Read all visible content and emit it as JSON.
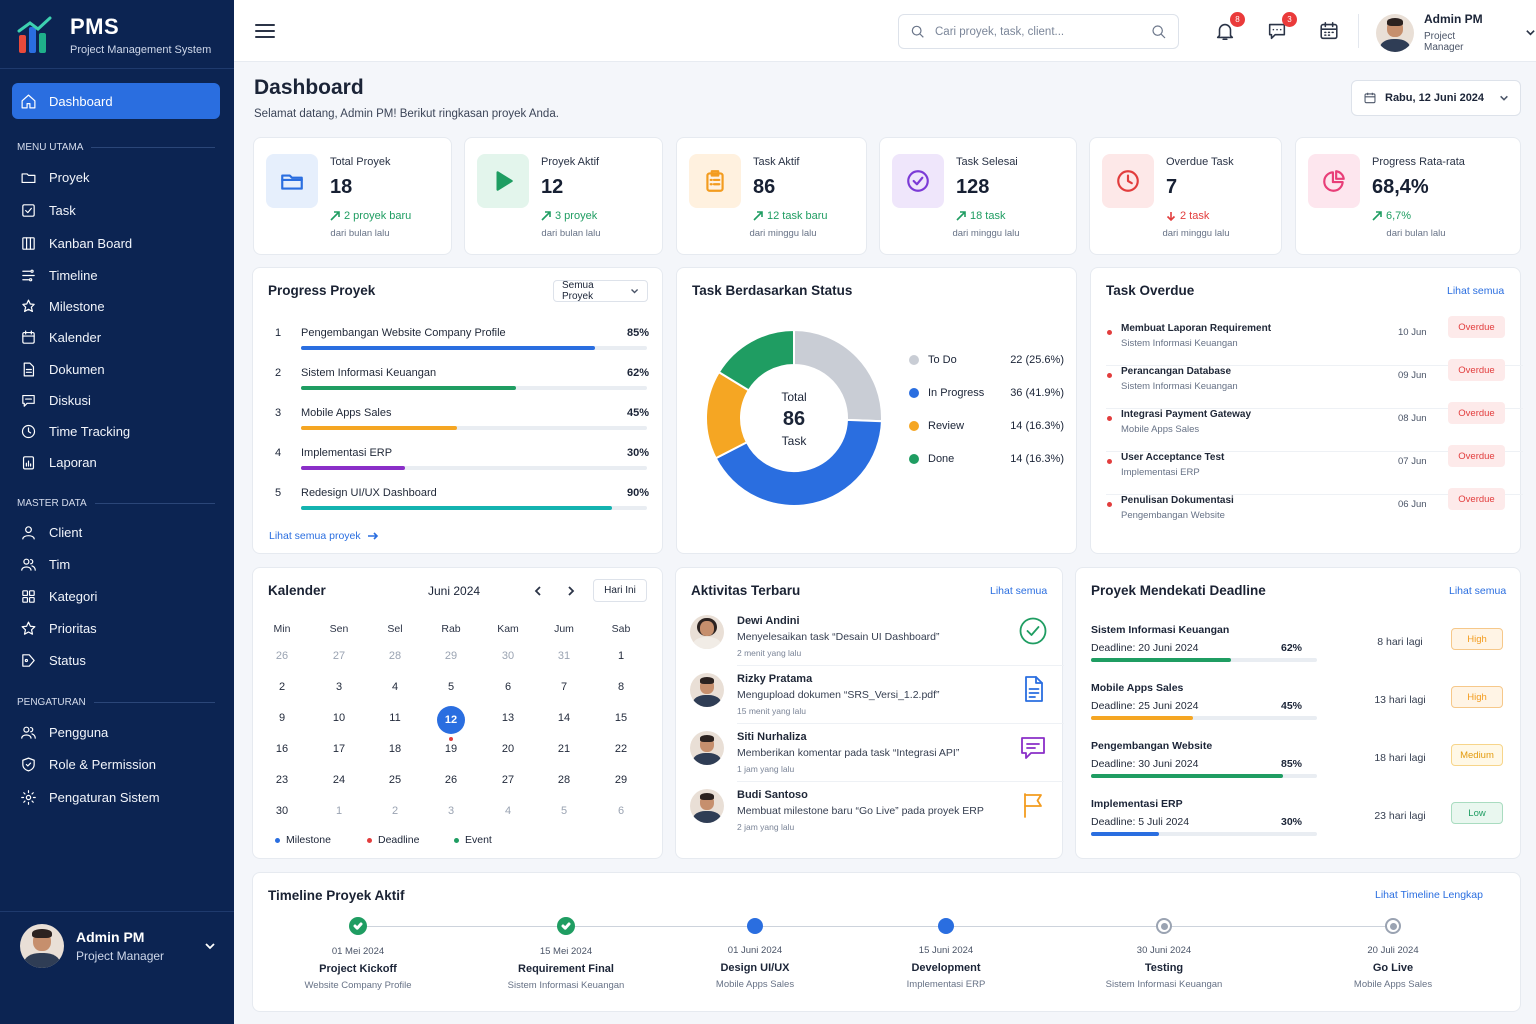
{
  "brand": {
    "title": "PMS",
    "subtitle": "Project Management System"
  },
  "nav": {
    "active": "Dashboard",
    "sections": [
      {
        "label": "MENU UTAMA",
        "items": [
          "Proyek",
          "Task",
          "Kanban Board",
          "Timeline",
          "Milestone",
          "Kalender",
          "Dokumen",
          "Diskusi",
          "Time Tracking",
          "Laporan"
        ]
      },
      {
        "label": "MASTER DATA",
        "items": [
          "Client",
          "Tim",
          "Kategori",
          "Prioritas",
          "Status"
        ]
      },
      {
        "label": "PENGATURAN",
        "items": [
          "Pengguna",
          "Role & Permission",
          "Pengaturan Sistem"
        ]
      }
    ]
  },
  "user": {
    "name": "Admin PM",
    "role": "Project Manager"
  },
  "topbar": {
    "search_placeholder": "Cari proyek, task, client...",
    "notif_count": "8",
    "msg_count": "3"
  },
  "page": {
    "title": "Dashboard",
    "subtitle": "Selamat datang, Admin PM! Berikut ringkasan proyek Anda.",
    "date": "Rabu, 12 Juni 2024"
  },
  "stats": [
    {
      "label": "Total Proyek",
      "value": "18",
      "trend": "2 proyek baru",
      "period": "dari bulan lalu",
      "dir": "up",
      "icon": "folder-icon",
      "color": "#2a6ee0",
      "bg": "#e6effc"
    },
    {
      "label": "Proyek Aktif",
      "value": "12",
      "trend": "3 proyek",
      "period": "dari bulan lalu",
      "dir": "up",
      "icon": "play-icon",
      "color": "#1f9d62",
      "bg": "#e3f5ec"
    },
    {
      "label": "Task Aktif",
      "value": "86",
      "trend": "12 task baru",
      "period": "dari minggu lalu",
      "dir": "up",
      "icon": "clipboard-icon",
      "color": "#f39c1f",
      "bg": "#fff1df"
    },
    {
      "label": "Task Selesai",
      "value": "128",
      "trend": "18 task",
      "period": "dari minggu lalu",
      "dir": "up",
      "icon": "check-circle-icon",
      "color": "#7c3bd6",
      "bg": "#efe6fb"
    },
    {
      "label": "Overdue Task",
      "value": "7",
      "trend": "2 task",
      "period": "dari minggu lalu",
      "dir": "down",
      "icon": "clock-icon",
      "color": "#e23d3d",
      "bg": "#fde8e8"
    },
    {
      "label": "Progress Rata-rata",
      "value": "68,4%",
      "trend": "6,7%",
      "period": "dari bulan lalu",
      "dir": "up",
      "icon": "pie-chart-icon",
      "color": "#e83e78",
      "bg": "#fde6ee"
    }
  ],
  "progress": {
    "title": "Progress Proyek",
    "filter": "Semua Proyek",
    "link": "Lihat semua proyek",
    "items": [
      {
        "num": "1",
        "name": "Pengembangan Website Company Profile",
        "pct": 85,
        "pct_label": "85%",
        "color": "#2a6ee0"
      },
      {
        "num": "2",
        "name": "Sistem Informasi Keuangan",
        "pct": 62,
        "pct_label": "62%",
        "color": "#1f9d62"
      },
      {
        "num": "3",
        "name": "Mobile Apps Sales",
        "pct": 45,
        "pct_label": "45%",
        "color": "#f5a623"
      },
      {
        "num": "4",
        "name": "Implementasi ERP",
        "pct": 30,
        "pct_label": "30%",
        "color": "#8a2ec8"
      },
      {
        "num": "5",
        "name": "Redesign UI/UX Dashboard",
        "pct": 90,
        "pct_label": "90%",
        "color": "#14b3b0"
      }
    ]
  },
  "status": {
    "title": "Task Berdasarkan Status",
    "center_top": "Total",
    "center_value": "86",
    "center_bottom": "Task",
    "chart_data": {
      "type": "pie",
      "categories": [
        "To Do",
        "In Progress",
        "Review",
        "Done"
      ],
      "values": [
        22,
        36,
        14,
        14
      ],
      "labels": [
        "22 (25.6%)",
        "36 (41.9%)",
        "14 (16.3%)",
        "14 (16.3%)"
      ],
      "colors": [
        "#c9cdd5",
        "#2a6ee0",
        "#f5a623",
        "#1f9d62"
      ]
    }
  },
  "overdue": {
    "title": "Task Overdue",
    "link": "Lihat semua",
    "items": [
      {
        "title": "Membuat Laporan Requirement",
        "project": "Sistem Informasi Keuangan",
        "date": "10 Jun",
        "badge": "Overdue"
      },
      {
        "title": "Perancangan Database",
        "project": "Sistem Informasi Keuangan",
        "date": "09 Jun",
        "badge": "Overdue"
      },
      {
        "title": "Integrasi Payment Gateway",
        "project": "Mobile Apps Sales",
        "date": "08 Jun",
        "badge": "Overdue"
      },
      {
        "title": "User Acceptance Test",
        "project": "Implementasi ERP",
        "date": "07 Jun",
        "badge": "Overdue"
      },
      {
        "title": "Penulisan Dokumentasi",
        "project": "Pengembangan Website",
        "date": "06 Jun",
        "badge": "Overdue"
      }
    ]
  },
  "calendar": {
    "title": "Kalender",
    "month": "Juni 2024",
    "today_btn": "Hari Ini",
    "weekdays": [
      "Min",
      "Sen",
      "Sel",
      "Rab",
      "Kam",
      "Jum",
      "Sab"
    ],
    "weeks": [
      [
        "26",
        "27",
        "28",
        "29",
        "30",
        "31",
        "1"
      ],
      [
        "2",
        "3",
        "4",
        "5",
        "6",
        "7",
        "8"
      ],
      [
        "9",
        "10",
        "11",
        "12",
        "13",
        "14",
        "15"
      ],
      [
        "16",
        "17",
        "18",
        "19",
        "20",
        "21",
        "22"
      ],
      [
        "23",
        "24",
        "25",
        "26",
        "27",
        "28",
        "29"
      ],
      [
        "30",
        "1",
        "2",
        "3",
        "4",
        "5",
        "6"
      ]
    ],
    "legend": [
      {
        "label": "Milestone",
        "color": "#2a6ee0"
      },
      {
        "label": "Deadline",
        "color": "#e23d3d"
      },
      {
        "label": "Event",
        "color": "#1f9d62"
      }
    ]
  },
  "activity": {
    "title": "Aktivitas Terbaru",
    "link": "Lihat semua",
    "items": [
      {
        "name": "Dewi Andini",
        "text": "Menyelesaikan task “Desain UI Dashboard”",
        "time": "2 menit yang lalu",
        "icon": "check-circle-icon",
        "color": "#1f9d62"
      },
      {
        "name": "Rizky Pratama",
        "text": "Mengupload dokumen “SRS_Versi_1.2.pdf”",
        "time": "15 menit yang lalu",
        "icon": "document-icon",
        "color": "#2a6ee0"
      },
      {
        "name": "Siti Nurhaliza",
        "text": "Memberikan komentar pada task “Integrasi API”",
        "time": "1 jam yang lalu",
        "icon": "comment-icon",
        "color": "#8a2ec8"
      },
      {
        "name": "Budi Santoso",
        "text": "Membuat milestone baru “Go Live” pada proyek ERP",
        "time": "2 jam yang lalu",
        "icon": "flag-icon",
        "color": "#f39c1f"
      }
    ]
  },
  "deadline": {
    "title": "Proyek Mendekati Deadline",
    "link": "Lihat semua",
    "items": [
      {
        "name": "Sistem Informasi Keuangan",
        "deadline": "Deadline: 20 Juni 2024",
        "pct": 62,
        "pct_label": "62%",
        "left": "8 hari lagi",
        "priority": "High",
        "color": "#1f9d62"
      },
      {
        "name": "Mobile Apps Sales",
        "deadline": "Deadline: 25 Juni 2024",
        "pct": 45,
        "pct_label": "45%",
        "left": "13 hari lagi",
        "priority": "High",
        "color": "#f5a623"
      },
      {
        "name": "Pengembangan Website",
        "deadline": "Deadline: 30 Juni 2024",
        "pct": 85,
        "pct_label": "85%",
        "left": "18 hari lagi",
        "priority": "Medium",
        "color": "#1f9d62"
      },
      {
        "name": "Implementasi ERP",
        "deadline": "Deadline: 5 Juli 2024",
        "pct": 30,
        "pct_label": "30%",
        "left": "23 hari lagi",
        "priority": "Low",
        "color": "#2a6ee0"
      }
    ]
  },
  "timeline": {
    "title": "Timeline Proyek Aktif",
    "link": "Lihat Timeline Lengkap",
    "steps": [
      {
        "date": "01 Mei 2024",
        "title": "Project Kickoff",
        "project": "Website Company Profile",
        "state": "done"
      },
      {
        "date": "15 Mei 2024",
        "title": "Requirement Final",
        "project": "Sistem Informasi Keuangan",
        "state": "done"
      },
      {
        "date": "01 Juni 2024",
        "title": "Design UI/UX",
        "project": "Mobile Apps Sales",
        "state": "progress"
      },
      {
        "date": "15 Juni 2024",
        "title": "Development",
        "project": "Implementasi ERP",
        "state": "progress"
      },
      {
        "date": "30 Juni 2024",
        "title": "Testing",
        "project": "Sistem Informasi Keuangan",
        "state": "pending"
      },
      {
        "date": "20 Juli 2024",
        "title": "Go Live",
        "project": "Mobile Apps Sales",
        "state": "pending"
      }
    ]
  }
}
